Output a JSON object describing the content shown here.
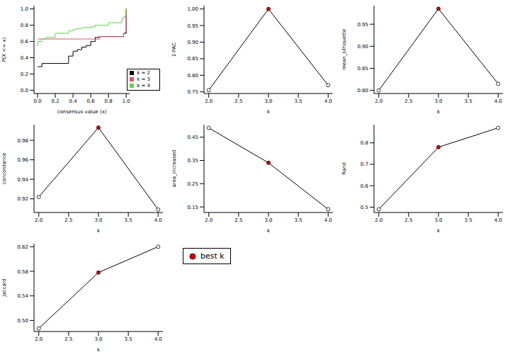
{
  "chart_data": [
    {
      "type": "line",
      "x_label": "consensus value (x)",
      "y_label": "P(X <= x)",
      "legend": "bottom right",
      "x": [
        0,
        0.005,
        0.05,
        0.1,
        0.2,
        0.35,
        0.4,
        0.45,
        0.5,
        0.55,
        0.6,
        0.65,
        0.7,
        0.8,
        0.95,
        0.97,
        0.99,
        1
      ],
      "series": [
        {
          "name": "k = 2",
          "color": "#000000",
          "line_style": "step",
          "values": [
            0.29,
            0.29,
            0.33,
            0.33,
            0.33,
            0.42,
            0.48,
            0.5,
            0.53,
            0.55,
            0.6,
            0.65,
            0.66,
            0.66,
            0.66,
            0.7,
            0.7,
            1.0
          ]
        },
        {
          "name": "k = 3",
          "color": "#df536b",
          "line_style": "step",
          "values": [
            0.63,
            0.63,
            0.63,
            0.63,
            0.63,
            0.63,
            0.63,
            0.63,
            0.63,
            0.63,
            0.63,
            0.63,
            0.66,
            0.66,
            0.66,
            0.7,
            0.72,
            1.0
          ]
        },
        {
          "name": "k = 4",
          "color": "#61d04f",
          "line_style": "step",
          "values": [
            0.55,
            0.6,
            0.63,
            0.65,
            0.7,
            0.73,
            0.75,
            0.76,
            0.77,
            0.77,
            0.78,
            0.8,
            0.8,
            0.83,
            0.88,
            0.9,
            0.92,
            1.0
          ]
        }
      ],
      "xlim": [
        -0.04,
        1.04
      ],
      "ylim": [
        -0.04,
        1.04
      ],
      "xticks": [
        {
          "value": 0,
          "label": "0.0"
        },
        {
          "value": 0.2,
          "label": "0.2"
        },
        {
          "value": 0.4,
          "label": "0.4"
        },
        {
          "value": 0.6,
          "label": "0.6"
        },
        {
          "value": 0.8,
          "label": "0.8"
        },
        {
          "value": 1,
          "label": "1.0"
        }
      ],
      "yticks": [
        {
          "value": 0,
          "label": "0.0"
        },
        {
          "value": 0.2,
          "label": "0.2"
        },
        {
          "value": 0.4,
          "label": "0.4"
        },
        {
          "value": 0.6,
          "label": "0.6"
        },
        {
          "value": 0.8,
          "label": "0.8"
        },
        {
          "value": 1,
          "label": "1.0"
        }
      ]
    },
    {
      "type": "line",
      "x_label": "k",
      "y_label": "1-PAC",
      "x": [
        2,
        3,
        4
      ],
      "values": [
        0.755,
        1.0,
        0.77
      ],
      "color": "#000000",
      "marker": "circle",
      "colors": [
        "#ffffff",
        "#e00000",
        "#ffffff"
      ],
      "xlim": [
        1.92,
        4.08
      ],
      "ylim": [
        0.745,
        1.01
      ],
      "xticks": [
        {
          "value": 2,
          "label": "2.0"
        },
        2.5,
        {
          "value": 3,
          "label": "3.0"
        },
        3.5,
        {
          "value": 4,
          "label": "4.0"
        }
      ],
      "yticks": [
        0.75,
        {
          "value": 0.8,
          "label": "0.80"
        },
        0.85,
        {
          "value": 0.9,
          "label": "0.90"
        },
        0.95,
        {
          "value": 1,
          "label": "1.00"
        }
      ]
    },
    {
      "type": "line",
      "x_label": "k",
      "y_label": "mean_silhouette",
      "x": [
        2,
        3,
        4
      ],
      "values": [
        0.8,
        0.985,
        0.815
      ],
      "color": "#000000",
      "marker": "circle",
      "colors": [
        "#ffffff",
        "#e00000",
        "#ffffff"
      ],
      "xlim": [
        1.92,
        4.08
      ],
      "ylim": [
        0.793,
        0.992
      ],
      "xticks": [
        {
          "value": 2,
          "label": "2.0"
        },
        2.5,
        {
          "value": 3,
          "label": "3.0"
        },
        3.5,
        {
          "value": 4,
          "label": "4.0"
        }
      ],
      "yticks": [
        {
          "value": 0.8,
          "label": "0.80"
        },
        0.85,
        {
          "value": 0.9,
          "label": "0.90"
        },
        0.95
      ]
    },
    {
      "type": "line",
      "x_label": "k",
      "y_label": "concordance",
      "x": [
        2,
        3,
        4
      ],
      "values": [
        0.922,
        0.993,
        0.909
      ],
      "color": "#000000",
      "marker": "circle",
      "colors": [
        "#ffffff",
        "#e00000",
        "#ffffff"
      ],
      "xlim": [
        1.92,
        4.08
      ],
      "ylim": [
        0.906,
        0.996
      ],
      "xticks": [
        {
          "value": 2,
          "label": "2.0"
        },
        2.5,
        {
          "value": 3,
          "label": "3.0"
        },
        3.5,
        {
          "value": 4,
          "label": "4.0"
        }
      ],
      "yticks": [
        0.92,
        0.94,
        0.96,
        0.98
      ]
    },
    {
      "type": "line",
      "x_label": "k",
      "y_label": "area_increased",
      "x": [
        2,
        3,
        4
      ],
      "values": [
        0.49,
        0.34,
        0.14
      ],
      "color": "#000000",
      "marker": "circle",
      "colors": [
        "#ffffff",
        "#e00000",
        "#ffffff"
      ],
      "xlim": [
        1.92,
        4.08
      ],
      "ylim": [
        0.126,
        0.504
      ],
      "xticks": [
        {
          "value": 2,
          "label": "2.0"
        },
        2.5,
        {
          "value": 3,
          "label": "3.0"
        },
        3.5,
        {
          "value": 4,
          "label": "4.0"
        }
      ],
      "yticks": [
        0.15,
        0.25,
        0.35,
        0.45
      ]
    },
    {
      "type": "line",
      "x_label": "k",
      "y_label": "Rand",
      "x": [
        2,
        3,
        4
      ],
      "values": [
        0.49,
        0.78,
        0.87
      ],
      "color": "#000000",
      "marker": "circle",
      "colors": [
        "#ffffff",
        "#e00000",
        "#ffffff"
      ],
      "xlim": [
        1.92,
        4.08
      ],
      "ylim": [
        0.475,
        0.885
      ],
      "xticks": [
        {
          "value": 2,
          "label": "2.0"
        },
        2.5,
        {
          "value": 3,
          "label": "3.0"
        },
        3.5,
        {
          "value": 4,
          "label": "4.0"
        }
      ],
      "yticks": [
        0.5,
        0.6,
        0.7,
        0.8
      ]
    },
    {
      "type": "line",
      "x_label": "k",
      "y_label": "Jaccard",
      "x": [
        2,
        3,
        4
      ],
      "values": [
        0.487,
        0.578,
        0.62
      ],
      "color": "#000000",
      "marker": "circle",
      "colors": [
        "#ffffff",
        "#e00000",
        "#ffffff"
      ],
      "xlim": [
        1.92,
        4.08
      ],
      "ylim": [
        0.482,
        0.625
      ],
      "xticks": [
        {
          "value": 2,
          "label": "2.0"
        },
        2.5,
        {
          "value": 3,
          "label": "3.0"
        },
        3.5,
        {
          "value": 4,
          "label": "4.0"
        }
      ],
      "yticks": [
        {
          "value": 0.5,
          "label": "0.50"
        },
        0.54,
        0.58,
        0.62
      ]
    }
  ],
  "legend_box": {
    "label": "best k",
    "color": "#e00000"
  }
}
